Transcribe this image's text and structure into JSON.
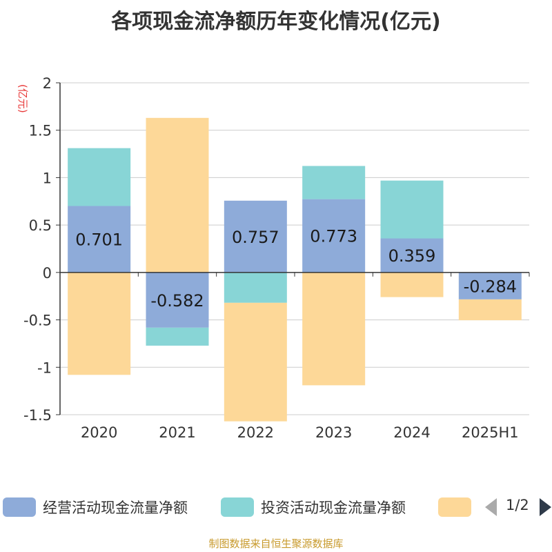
{
  "title": "各项现金流净额历年变化情况(亿元)",
  "source": "制图数据来自恒生聚源数据库",
  "pager": "1/2",
  "colors": {
    "operating": "#8eabd9",
    "investing": "#88d5d6",
    "financing": "#fdd898",
    "axis": "#333333",
    "grid": "#cccccc",
    "unit": "#e83a3a"
  },
  "chart_data": {
    "type": "bar",
    "stacked": true,
    "unit_label": "(亿元)",
    "categories": [
      "2020",
      "2021",
      "2022",
      "2023",
      "2024",
      "2025H1"
    ],
    "ylim": [
      -1.5,
      2
    ],
    "yticks": [
      -1.5,
      -1,
      -0.5,
      0,
      0.5,
      1,
      1.5,
      2
    ],
    "ytick_labels": [
      "-1.5",
      "-1",
      "-0.5",
      "0",
      "0.5",
      "1",
      "1.5",
      "2"
    ],
    "grid": true,
    "legend_position": "bottom",
    "series": [
      {
        "name": "经营活动现金流量净额",
        "color_key": "operating",
        "values": [
          0.701,
          -0.582,
          0.757,
          0.773,
          0.359,
          -0.284
        ],
        "labels": [
          "0.701",
          "-0.582",
          "0.757",
          "0.773",
          "0.359",
          "-0.284"
        ]
      },
      {
        "name": "投资活动现金流量净额",
        "color_key": "investing",
        "values": [
          0.61,
          -0.19,
          -0.32,
          0.35,
          0.61,
          0
        ]
      },
      {
        "name": "",
        "color_key": "financing",
        "values": [
          -1.08,
          1.63,
          -1.25,
          -1.19,
          -0.26,
          -0.22
        ]
      }
    ]
  }
}
